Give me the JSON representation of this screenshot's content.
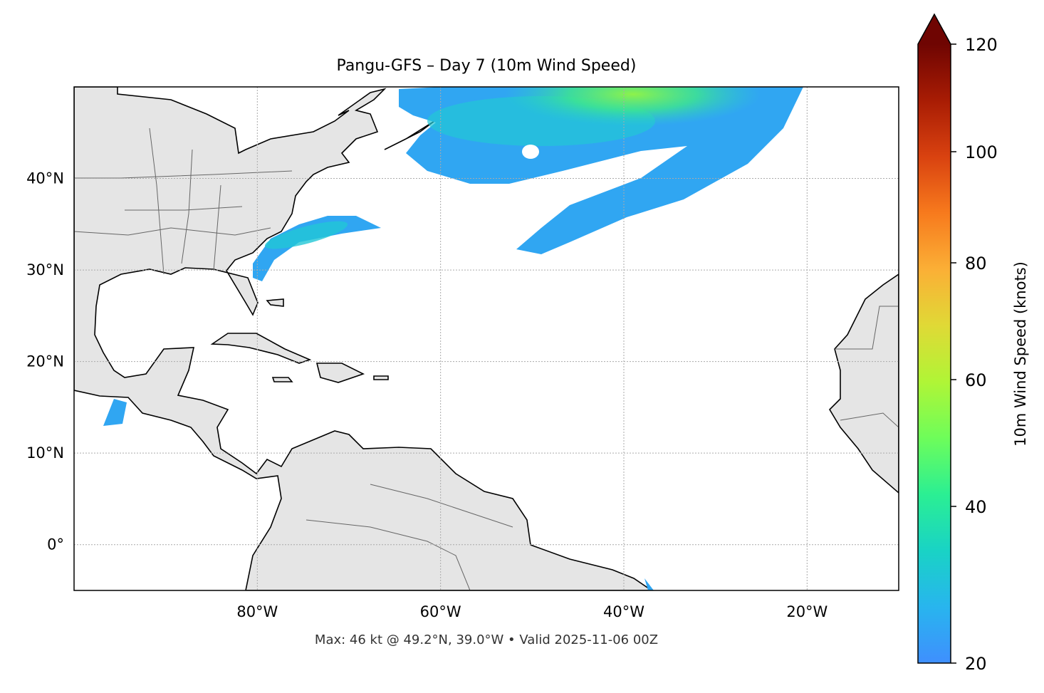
{
  "title": "Pangu-GFS – Day 7 (10m Wind Speed)",
  "footer": "Max: 46 kt @ 49.2°N, 39.0°W • Valid 2025-11-06 00Z",
  "map": {
    "extent": {
      "lon": [
        -100,
        -10
      ],
      "lat": [
        -5,
        50
      ]
    },
    "projection": "PlateCarree",
    "land_color": "#e5e5e5",
    "coastline_color": "#000000",
    "border_color": "#666666",
    "gridlines": "dotted",
    "lon_ticks": [
      {
        "value": -80,
        "label": "80°W"
      },
      {
        "value": -60,
        "label": "60°W"
      },
      {
        "value": -40,
        "label": "40°W"
      },
      {
        "value": -20,
        "label": "20°W"
      }
    ],
    "lat_ticks": [
      {
        "value": 40,
        "label": "40°N"
      },
      {
        "value": 30,
        "label": "30°N"
      },
      {
        "value": 20,
        "label": "20°N"
      },
      {
        "value": 10,
        "label": "10°N"
      },
      {
        "value": 0,
        "label": "0°"
      }
    ],
    "max_wind": {
      "value_kt": 46,
      "lat": 49.2,
      "lon": -39.0
    }
  },
  "colorbar": {
    "label": "10m Wind Speed (knots)",
    "min": 20,
    "max": 120,
    "extend": "max",
    "ticks": [
      "20",
      "40",
      "60",
      "80",
      "100",
      "120"
    ],
    "colors": [
      "#3f8ffe",
      "#28b5ee",
      "#19d3c5",
      "#2bef93",
      "#6efd5a",
      "#b0f536",
      "#e0d936",
      "#fbaf36",
      "#f77a1d",
      "#d94210",
      "#a81c04",
      "#6f0502"
    ]
  }
}
